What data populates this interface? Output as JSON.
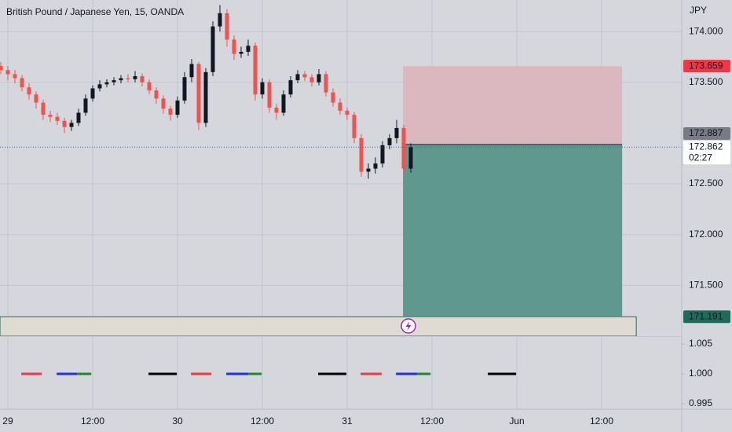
{
  "chart_data": {
    "type": "candlestick",
    "title": "British Pound / Japanese Yen, 15, OANDA",
    "currency": "JPY",
    "up_color": "#131722",
    "down_color": "#ef5350",
    "x": [
      -1,
      0,
      1,
      2,
      3,
      4,
      5,
      6,
      7,
      8,
      9,
      10,
      11,
      12,
      13,
      14,
      15,
      16,
      17,
      18,
      19,
      20,
      21,
      22,
      23,
      24,
      25,
      26,
      27,
      28,
      29,
      30,
      31,
      32,
      33,
      34,
      35,
      36,
      37,
      38,
      39,
      40,
      41,
      42,
      43,
      44,
      45,
      46,
      47,
      48,
      49,
      50,
      51,
      52,
      53,
      54,
      55,
      56,
      57
    ],
    "open": [
      173.66,
      173.62,
      173.58,
      173.54,
      173.45,
      173.38,
      173.3,
      173.18,
      173.16,
      173.12,
      173.06,
      173.1,
      173.2,
      173.34,
      173.44,
      173.48,
      173.5,
      173.52,
      173.54,
      173.53,
      173.56,
      173.5,
      173.42,
      173.34,
      173.24,
      173.18,
      173.32,
      173.55,
      173.68,
      173.1,
      173.6,
      174.05,
      174.18,
      173.92,
      173.78,
      173.8,
      173.86,
      173.38,
      173.5,
      173.25,
      173.2,
      173.38,
      173.52,
      173.58,
      173.55,
      173.5,
      173.58,
      173.4,
      173.3,
      173.22,
      173.18,
      172.95,
      172.62,
      172.65,
      172.7,
      172.88,
      172.95,
      173.05,
      172.65
    ],
    "high": [
      173.7,
      173.66,
      173.62,
      173.57,
      173.49,
      173.41,
      173.33,
      173.22,
      173.2,
      173.15,
      173.13,
      173.24,
      173.38,
      173.47,
      173.52,
      173.53,
      173.55,
      173.57,
      173.58,
      173.61,
      173.59,
      173.53,
      173.45,
      173.37,
      173.27,
      173.36,
      173.6,
      173.73,
      173.7,
      173.64,
      174.1,
      174.26,
      174.22,
      173.96,
      173.85,
      173.92,
      173.89,
      173.54,
      173.53,
      173.29,
      173.42,
      173.56,
      173.62,
      173.61,
      173.58,
      173.63,
      173.61,
      173.44,
      173.34,
      173.25,
      173.21,
      172.99,
      172.7,
      172.76,
      172.92,
      172.99,
      173.13,
      173.08,
      172.9
    ],
    "low": [
      173.58,
      173.52,
      173.49,
      173.41,
      173.33,
      173.24,
      173.13,
      173.11,
      173.08,
      173.0,
      173.02,
      173.07,
      173.17,
      173.31,
      173.41,
      173.45,
      173.47,
      173.49,
      173.5,
      173.5,
      173.46,
      173.38,
      173.29,
      173.19,
      173.12,
      173.15,
      173.29,
      173.5,
      173.03,
      173.06,
      173.56,
      174.0,
      173.85,
      173.72,
      173.74,
      173.76,
      173.32,
      173.34,
      173.2,
      173.13,
      173.17,
      173.35,
      173.49,
      173.51,
      173.46,
      173.47,
      173.36,
      173.26,
      173.18,
      173.13,
      172.9,
      172.57,
      172.55,
      172.6,
      172.66,
      172.84,
      172.9,
      172.58,
      172.61
    ],
    "close": [
      173.62,
      173.58,
      173.54,
      173.45,
      173.38,
      173.3,
      173.18,
      173.16,
      173.12,
      173.06,
      173.1,
      173.2,
      173.34,
      173.44,
      173.48,
      173.5,
      173.52,
      173.54,
      173.53,
      173.56,
      173.5,
      173.42,
      173.34,
      173.24,
      173.18,
      173.32,
      173.55,
      173.68,
      173.1,
      173.6,
      174.05,
      174.18,
      173.92,
      173.78,
      173.8,
      173.86,
      173.38,
      173.5,
      173.25,
      173.2,
      173.38,
      173.52,
      173.58,
      173.55,
      173.5,
      173.58,
      173.4,
      173.3,
      173.22,
      173.18,
      172.95,
      172.62,
      172.65,
      172.7,
      172.88,
      172.95,
      173.05,
      172.65,
      172.862
    ],
    "xlim": [
      -1.11,
      95.33
    ],
    "xticks": [
      {
        "value": 0,
        "label": "29"
      },
      {
        "value": 12,
        "label": "12:00"
      },
      {
        "value": 24,
        "label": "30"
      },
      {
        "value": 36,
        "label": "12:00"
      },
      {
        "value": 48,
        "label": "31"
      },
      {
        "value": 60,
        "label": "12:00"
      },
      {
        "value": 72,
        "label": "Jun"
      },
      {
        "value": 84,
        "label": "12:00"
      }
    ],
    "ylim": [
      171.0,
      174.31
    ],
    "yticks": [
      {
        "value": 174,
        "label": "174.000"
      },
      {
        "value": 173.5,
        "label": "173.500"
      },
      {
        "value": 172.5,
        "label": "172.500"
      },
      {
        "value": 172,
        "label": "172.000"
      },
      {
        "value": 171.5,
        "label": "171.500"
      }
    ],
    "grid": true,
    "last_price": {
      "value": 172.862,
      "countdown": "02:27"
    },
    "position": {
      "x": [
        55.9,
        86.9
      ],
      "entry": 172.887,
      "stop": 173.659,
      "target": 171.191,
      "stop_color": "#dbb8c0",
      "target_color": "#5f988f",
      "entry_color": "#787b86",
      "stop_label_color": "#f23645",
      "target_label_color": "#1e6b5a"
    },
    "zone": {
      "x_end": 88.9,
      "color": "#dedbd2"
    },
    "indicator": {
      "ylim": [
        0.99421,
        1.00632
      ],
      "yticks": [
        {
          "value": 1.005,
          "label": "1.005"
        },
        {
          "value": 1,
          "label": "1.000"
        },
        {
          "value": 0.995,
          "label": "0.995"
        }
      ],
      "segments": [
        {
          "x": [
            1.9,
            4.8
          ],
          "value": 1,
          "color": "#f23645"
        },
        {
          "x": [
            6.9,
            9.8
          ],
          "value": 1,
          "color": "#2130e8"
        },
        {
          "x": [
            9.8,
            11.8
          ],
          "value": 1,
          "color": "#1a8a2a"
        },
        {
          "x": [
            19.9,
            23.9
          ],
          "value": 1,
          "color": "#000000"
        },
        {
          "x": [
            25.9,
            28.8
          ],
          "value": 1,
          "color": "#f23645"
        },
        {
          "x": [
            30.9,
            34
          ],
          "value": 1,
          "color": "#2130e8"
        },
        {
          "x": [
            34,
            35.9
          ],
          "value": 1,
          "color": "#1a8a2a"
        },
        {
          "x": [
            43.9,
            47.9
          ],
          "value": 1,
          "color": "#000000"
        },
        {
          "x": [
            49.9,
            52.9
          ],
          "value": 1,
          "color": "#f23645"
        },
        {
          "x": [
            54.9,
            57.9
          ],
          "value": 1,
          "color": "#2130e8"
        },
        {
          "x": [
            57.9,
            59.8
          ],
          "value": 1,
          "color": "#1a8a2a"
        },
        {
          "x": [
            67.9,
            71.9
          ],
          "value": 1,
          "color": "#000000"
        }
      ]
    }
  }
}
